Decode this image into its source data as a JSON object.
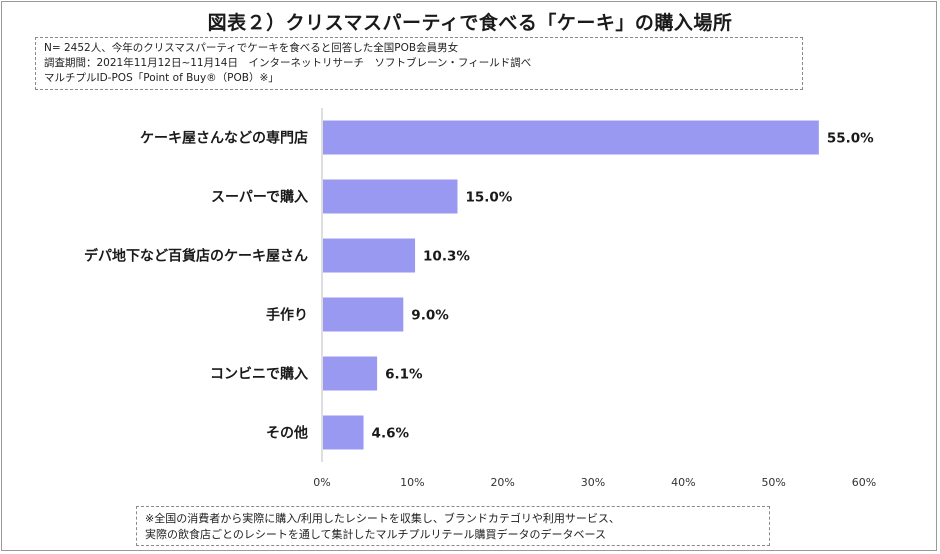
{
  "title": "図表２）クリスマスパーティで食べる「ケーキ」の購入場所",
  "note_lines": [
    "N= 2452人、今年のクリスマスパーティでケーキを食べると回答した全国POB会員男女",
    "調査期間：2021年11月12日~11月14日　インターネットリサーチ　ソフトブレーン・フィールド調べ",
    "マルチプルID-POS「Point of Buy®（POB）※」"
  ],
  "footnote_lines": [
    "※全国の消費者から実際に購入/利用したレシートを収集し、ブランドカテゴリや利用サービス、",
    "実際の飲食店ごとのレシートを通して集計したマルチプルリテール購買データのデータベース"
  ],
  "chart_data": {
    "type": "bar",
    "orientation": "horizontal",
    "title": "図表２）クリスマスパーティで食べる「ケーキ」の購入場所",
    "categories": [
      "ケーキ屋さんなどの専門店",
      "スーパーで購入",
      "デパ地下など百貨店のケーキ屋さん",
      "手作り",
      "コンビニで購入",
      "その他"
    ],
    "values": [
      55.0,
      15.0,
      10.3,
      9.0,
      6.1,
      4.6
    ],
    "value_labels": [
      "55.0%",
      "15.0%",
      "10.3%",
      "9.0%",
      "6.1%",
      "4.6%"
    ],
    "xlim": [
      0,
      60
    ],
    "xticks": [
      0,
      10,
      20,
      30,
      40,
      50,
      60
    ],
    "xtick_labels": [
      "0%",
      "10%",
      "20%",
      "30%",
      "40%",
      "50%",
      "60%"
    ],
    "xlabel": "",
    "ylabel": "",
    "grid": false,
    "legend": "none",
    "bar_color": "#9999f2"
  }
}
